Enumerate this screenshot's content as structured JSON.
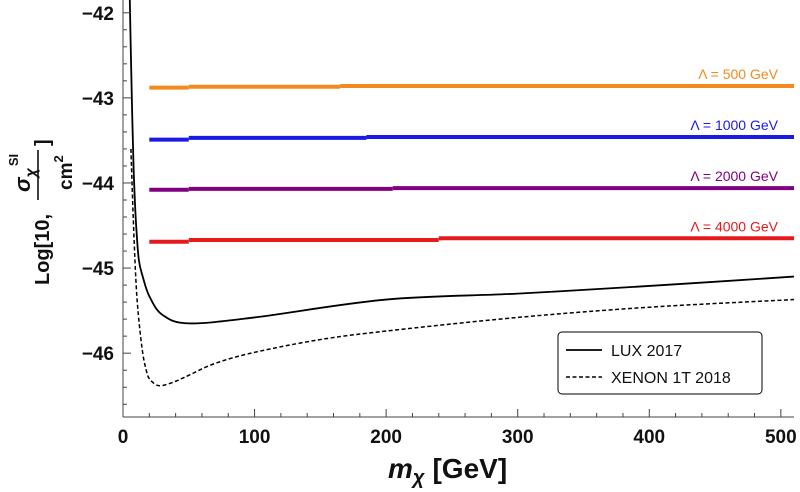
{
  "chart_data": {
    "type": "line",
    "title": "",
    "xlabel": {
      "symbol": "m",
      "subscript": "χ",
      "unit": "[GeV]"
    },
    "ylabel": {
      "prefix": "Log[10,",
      "sigma": "σ",
      "subscript": "χ",
      "superscript": "SI",
      "denominator": "cm",
      "denominator_power": "2",
      "suffix": "]"
    },
    "xlim": [
      0,
      510
    ],
    "ylim": [
      -46.75,
      -41.85
    ],
    "xticks": [
      0,
      100,
      200,
      300,
      400,
      500
    ],
    "yticks": [
      -42,
      -43,
      -44,
      -45,
      -46
    ],
    "horizontal_series": [
      {
        "name": "Λ = 500 GeV",
        "color": "#f28a1e",
        "segments": [
          [
            20,
            50,
            -42.88
          ],
          [
            50,
            165,
            -42.87
          ],
          [
            165,
            510,
            -42.86
          ]
        ]
      },
      {
        "name": "Λ = 1000 GeV",
        "color": "#1a1ae6",
        "segments": [
          [
            20,
            50,
            -43.49
          ],
          [
            50,
            185,
            -43.47
          ],
          [
            185,
            510,
            -43.46
          ]
        ]
      },
      {
        "name": "Λ = 2000 GeV",
        "color": "#800080",
        "segments": [
          [
            20,
            50,
            -44.08
          ],
          [
            50,
            205,
            -44.07
          ],
          [
            205,
            510,
            -44.06
          ]
        ]
      },
      {
        "name": "Λ = 4000 GeV",
        "color": "#e61a1a",
        "segments": [
          [
            20,
            50,
            -44.69
          ],
          [
            50,
            240,
            -44.67
          ],
          [
            240,
            510,
            -44.65
          ]
        ]
      }
    ],
    "limit_series": [
      {
        "name": "LUX 2017",
        "style": "solid",
        "color": "#000000",
        "x": [
          5,
          6,
          7,
          8,
          9,
          10,
          12,
          15,
          20,
          30,
          50,
          100,
          200,
          300,
          400,
          510
        ],
        "y": [
          -41.7,
          -42.5,
          -43.2,
          -43.8,
          -44.2,
          -44.5,
          -44.9,
          -45.1,
          -45.33,
          -45.55,
          -45.65,
          -45.58,
          -45.37,
          -45.3,
          -45.21,
          -45.1
        ]
      },
      {
        "name": "XENON 1T 2018",
        "style": "dashed",
        "color": "#000000",
        "x": [
          6,
          8,
          10,
          12,
          15,
          18,
          20,
          25,
          30,
          40,
          50,
          70,
          100,
          150,
          200,
          300,
          400,
          510
        ],
        "y": [
          -43.6,
          -44.5,
          -45.2,
          -45.6,
          -46.0,
          -46.22,
          -46.3,
          -46.37,
          -46.38,
          -46.33,
          -46.26,
          -46.12,
          -45.99,
          -45.84,
          -45.74,
          -45.58,
          -45.46,
          -45.37
        ]
      }
    ],
    "legend": {
      "position": "bottom-right",
      "entries": [
        "LUX 2017",
        "XENON 1T 2018"
      ]
    },
    "grid": false
  }
}
